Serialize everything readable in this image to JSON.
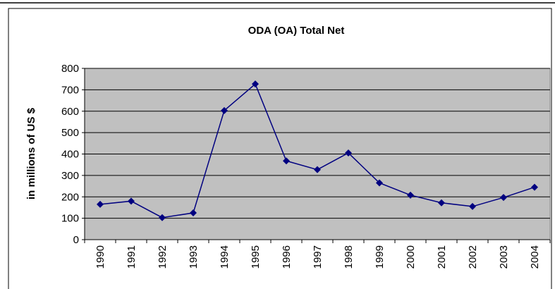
{
  "chart_data": {
    "type": "line",
    "title": "ODA (OA) Total Net",
    "y_label": "in millions of US $",
    "categories": [
      "1990",
      "1991",
      "1992",
      "1993",
      "1994",
      "1995",
      "1996",
      "1997",
      "1998",
      "1999",
      "2000",
      "2001",
      "2002",
      "2003",
      "2004"
    ],
    "series": [
      {
        "name": "ODA (OA) Total Net",
        "color": "#000080",
        "values": [
          165,
          180,
          103,
          125,
          603,
          727,
          368,
          327,
          405,
          265,
          208,
          172,
          155,
          197,
          245
        ]
      }
    ],
    "ylim": [
      0,
      800
    ],
    "yticks": [
      0,
      100,
      200,
      300,
      400,
      500,
      600,
      700,
      800
    ],
    "grid": true,
    "plot_background": "#c0c0c0"
  }
}
